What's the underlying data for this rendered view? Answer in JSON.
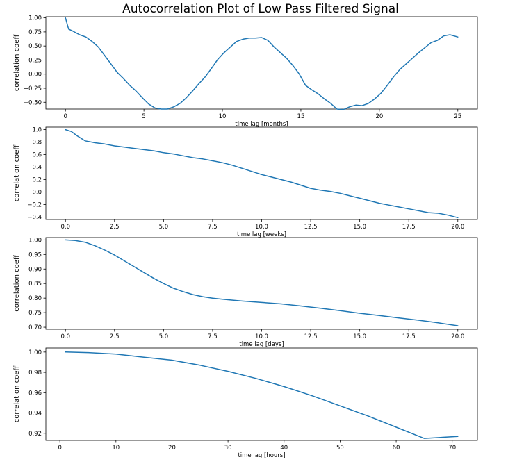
{
  "figure": {
    "title": "Autocorrelation Plot of Low Pass Filtered Signal",
    "line_color": "#1f77b4"
  },
  "chart_data": [
    {
      "type": "line",
      "xlabel": "time lag [months]",
      "ylabel": "correlation coeff",
      "xlim": [
        -1.25,
        26.25
      ],
      "ylim": [
        -0.62,
        1.02
      ],
      "xticks": [
        0,
        5,
        10,
        15,
        20,
        25
      ],
      "xtick_labels": [
        "0",
        "5",
        "10",
        "15",
        "20",
        "25"
      ],
      "yticks": [
        1.0,
        0.75,
        0.5,
        0.25,
        0.0,
        -0.25,
        -0.5
      ],
      "ytick_labels": [
        "1.00",
        "0.75",
        "0.50",
        "0.25",
        "0.00",
        "−0.25",
        "−0.50"
      ],
      "x": [
        0,
        0.2,
        0.5,
        0.9,
        1.3,
        1.7,
        2.1,
        2.5,
        2.9,
        3.3,
        3.7,
        4.1,
        4.5,
        4.9,
        5.3,
        5.7,
        6.1,
        6.5,
        6.9,
        7.3,
        7.7,
        8.1,
        8.5,
        8.9,
        9.3,
        9.7,
        10.1,
        10.5,
        10.9,
        11.3,
        11.7,
        12.1,
        12.5,
        12.9,
        13.3,
        13.7,
        14.1,
        14.5,
        14.9,
        15.3,
        15.7,
        16.1,
        16.5,
        16.9,
        17.3,
        17.7,
        18.1,
        18.5,
        18.9,
        19.3,
        19.7,
        20.1,
        20.5,
        20.9,
        21.3,
        21.7,
        22.1,
        22.5,
        22.9,
        23.3,
        23.7,
        24.1,
        24.5,
        25.0
      ],
      "y": [
        1.0,
        0.8,
        0.76,
        0.7,
        0.66,
        0.58,
        0.48,
        0.33,
        0.18,
        0.03,
        -0.08,
        -0.2,
        -0.3,
        -0.42,
        -0.53,
        -0.6,
        -0.62,
        -0.62,
        -0.58,
        -0.52,
        -0.42,
        -0.3,
        -0.17,
        -0.05,
        0.1,
        0.26,
        0.38,
        0.48,
        0.58,
        0.62,
        0.64,
        0.64,
        0.65,
        0.6,
        0.48,
        0.38,
        0.28,
        0.15,
        0.0,
        -0.2,
        -0.28,
        -0.35,
        -0.44,
        -0.52,
        -0.62,
        -0.63,
        -0.58,
        -0.55,
        -0.56,
        -0.52,
        -0.44,
        -0.34,
        -0.2,
        -0.05,
        0.08,
        0.18,
        0.28,
        0.38,
        0.47,
        0.56,
        0.6,
        0.68,
        0.7,
        0.66
      ]
    },
    {
      "type": "line",
      "xlabel": "time lag [weeks]",
      "ylabel": "correlation coeff",
      "xlim": [
        -1.0,
        21.0
      ],
      "ylim": [
        -0.44,
        1.04
      ],
      "xticks": [
        0,
        2.5,
        5,
        7.5,
        10,
        12.5,
        15,
        17.5,
        20
      ],
      "xtick_labels": [
        "0.0",
        "2.5",
        "5.0",
        "7.5",
        "10.0",
        "12.5",
        "15.0",
        "17.5",
        "20.0"
      ],
      "yticks": [
        1.0,
        0.8,
        0.6,
        0.4,
        0.2,
        0.0,
        -0.2,
        -0.4
      ],
      "ytick_labels": [
        "1.0",
        "0.8",
        "0.6",
        "0.4",
        "0.2",
        "0.0",
        "−0.2",
        "−0.4"
      ],
      "x": [
        0,
        0.3,
        0.6,
        1.0,
        1.5,
        2.0,
        2.5,
        3.0,
        3.5,
        4.0,
        4.5,
        5.0,
        5.5,
        6.0,
        6.5,
        7.0,
        7.5,
        8.0,
        8.5,
        9.0,
        9.5,
        10.0,
        10.5,
        11.0,
        11.5,
        12.0,
        12.5,
        13.0,
        13.5,
        14.0,
        14.5,
        15.0,
        15.5,
        16.0,
        16.5,
        17.0,
        17.5,
        18.0,
        18.5,
        19.0,
        19.5,
        20.0
      ],
      "y": [
        1.0,
        0.97,
        0.9,
        0.82,
        0.79,
        0.77,
        0.74,
        0.72,
        0.7,
        0.68,
        0.66,
        0.63,
        0.61,
        0.58,
        0.55,
        0.53,
        0.5,
        0.47,
        0.43,
        0.38,
        0.33,
        0.28,
        0.24,
        0.2,
        0.16,
        0.11,
        0.06,
        0.03,
        0.01,
        -0.02,
        -0.06,
        -0.1,
        -0.14,
        -0.18,
        -0.21,
        -0.24,
        -0.27,
        -0.3,
        -0.33,
        -0.34,
        -0.37,
        -0.41
      ]
    },
    {
      "type": "line",
      "xlabel": "time lag [days]",
      "ylabel": "correlation coeff",
      "xlim": [
        -1.0,
        21.0
      ],
      "ylim": [
        0.693,
        1.008
      ],
      "xticks": [
        0,
        2.5,
        5,
        7.5,
        10,
        12.5,
        15,
        17.5,
        20
      ],
      "xtick_labels": [
        "0.0",
        "2.5",
        "5.0",
        "7.5",
        "10.0",
        "12.5",
        "15.0",
        "17.5",
        "20.0"
      ],
      "yticks": [
        1.0,
        0.95,
        0.9,
        0.85,
        0.8,
        0.75,
        0.7
      ],
      "ytick_labels": [
        "1.00",
        "0.95",
        "0.90",
        "0.85",
        "0.80",
        "0.75",
        "0.70"
      ],
      "x": [
        0,
        0.5,
        1.0,
        1.5,
        2.0,
        2.5,
        3.0,
        3.5,
        4.0,
        4.5,
        5.0,
        5.5,
        6.0,
        6.5,
        7.0,
        7.5,
        8.0,
        9.0,
        10.0,
        11.0,
        12.0,
        13.0,
        14.0,
        15.0,
        16.0,
        17.0,
        18.0,
        19.0,
        20.0
      ],
      "y": [
        1.0,
        0.998,
        0.992,
        0.98,
        0.965,
        0.948,
        0.928,
        0.908,
        0.888,
        0.868,
        0.85,
        0.834,
        0.822,
        0.812,
        0.805,
        0.8,
        0.796,
        0.79,
        0.785,
        0.78,
        0.773,
        0.765,
        0.757,
        0.748,
        0.74,
        0.732,
        0.724,
        0.715,
        0.705
      ]
    },
    {
      "type": "line",
      "xlabel": "time lag [hours]",
      "ylabel": "correlation coeff",
      "xlim": [
        -2.5,
        74.5
      ],
      "ylim": [
        0.913,
        1.004
      ],
      "xticks": [
        0,
        10,
        20,
        30,
        40,
        50,
        60,
        70
      ],
      "xtick_labels": [
        "0",
        "10",
        "20",
        "30",
        "40",
        "50",
        "60",
        "70"
      ],
      "yticks": [
        1.0,
        0.98,
        0.96,
        0.94,
        0.92
      ],
      "ytick_labels": [
        "1.00",
        "0.98",
        "0.96",
        "0.94",
        "0.92"
      ],
      "x": [
        1,
        5,
        10,
        15,
        20,
        25,
        30,
        35,
        40,
        45,
        50,
        55,
        60,
        65,
        71
      ],
      "y": [
        1.0,
        0.9995,
        0.998,
        0.995,
        0.992,
        0.987,
        0.981,
        0.974,
        0.966,
        0.957,
        0.947,
        0.937,
        0.926,
        0.915,
        0.917
      ]
    }
  ]
}
